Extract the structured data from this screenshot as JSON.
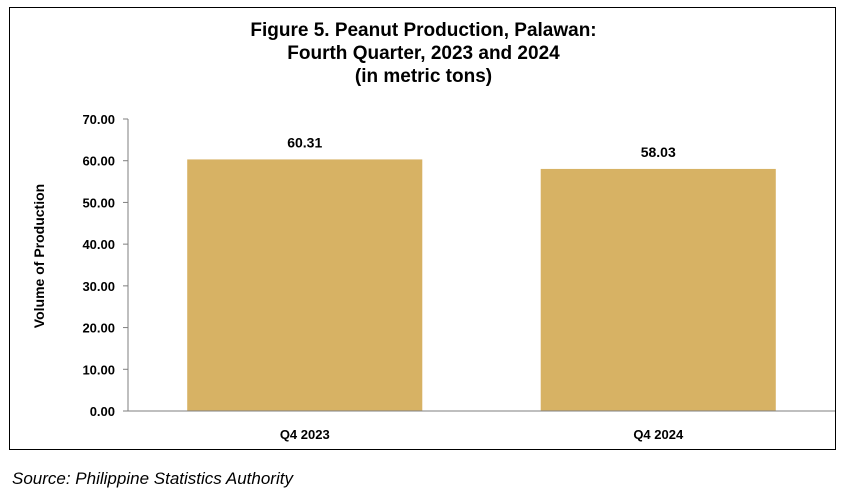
{
  "chart_data": {
    "type": "bar",
    "title_lines": [
      "Figure 5. Peanut Production, Palawan:",
      "Fourth Quarter, 2023 and 2024",
      "(in metric tons)"
    ],
    "xlabel": "",
    "ylabel": "Volume of Production",
    "categories": [
      "Q4 2023",
      "Q4 2024"
    ],
    "values": [
      60.31,
      58.03
    ],
    "data_labels": [
      "60.31",
      "58.03"
    ],
    "ylim": [
      0,
      70
    ],
    "y_ticks": [
      0,
      10,
      20,
      30,
      40,
      50,
      60,
      70
    ],
    "y_tick_labels": [
      "0.00",
      "10.00",
      "20.00",
      "30.00",
      "40.00",
      "50.00",
      "60.00",
      "70.00"
    ],
    "grid": false,
    "legend": "none",
    "bar_color": "#D7B264"
  },
  "source_note": "Source: Philippine Statistics Authority"
}
